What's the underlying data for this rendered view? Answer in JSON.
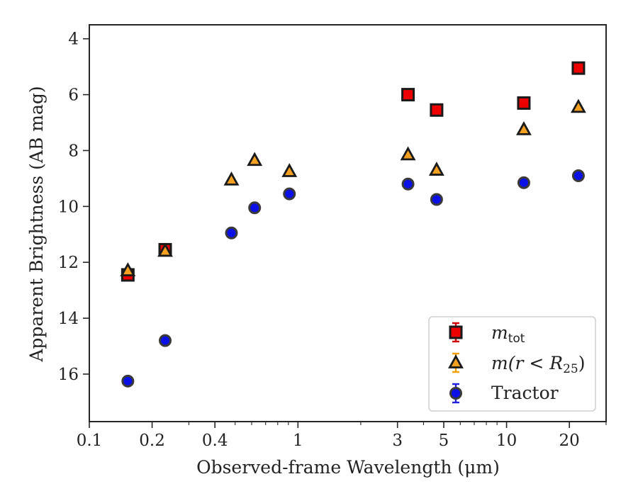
{
  "chart_data": {
    "type": "scatter",
    "xlabel": "Observed-frame Wavelength (μm)",
    "ylabel": "Apparent Brightness (AB mag)",
    "xscale": "log",
    "xlim": [
      0.1,
      30
    ],
    "ylim": [
      17.7,
      3.5
    ],
    "y_inverted": true,
    "x_ticks": [
      {
        "value": 0.1,
        "label": "0.1"
      },
      {
        "value": 0.2,
        "label": "0.2"
      },
      {
        "value": 0.4,
        "label": "0.4"
      },
      {
        "value": 1,
        "label": "1"
      },
      {
        "value": 3,
        "label": "3"
      },
      {
        "value": 5,
        "label": "5"
      },
      {
        "value": 10,
        "label": "10"
      },
      {
        "value": 20,
        "label": "20"
      }
    ],
    "y_ticks": [
      {
        "value": 4,
        "label": "4"
      },
      {
        "value": 6,
        "label": "6"
      },
      {
        "value": 8,
        "label": "8"
      },
      {
        "value": 10,
        "label": "10"
      },
      {
        "value": 12,
        "label": "12"
      },
      {
        "value": 14,
        "label": "14"
      },
      {
        "value": 16,
        "label": "16"
      }
    ],
    "grid": false,
    "legend_position": "lower-right",
    "series": [
      {
        "name": "m_tot",
        "marker": "square",
        "color": "#ee0000",
        "edge_color": "#1a1a1a",
        "error_color": "#cc0000",
        "x": [
          0.153,
          0.231,
          3.37,
          4.62,
          12.1,
          22.1
        ],
        "y": [
          12.45,
          11.55,
          6.0,
          6.55,
          6.3,
          5.05
        ]
      },
      {
        "name": "m(r<R25)",
        "marker": "triangle",
        "color": "#f5a020",
        "edge_color": "#1a1a1a",
        "error_color": "#f0a000",
        "x": [
          0.153,
          0.231,
          0.48,
          0.62,
          0.91,
          3.37,
          4.62,
          12.1,
          22.1
        ],
        "y": [
          12.3,
          11.6,
          9.05,
          8.35,
          8.75,
          8.15,
          8.7,
          7.25,
          6.45
        ]
      },
      {
        "name": "Tractor",
        "marker": "circle",
        "color": "#0a10e6",
        "edge_color": "#3a3a3a",
        "error_color": "#2222dd",
        "x": [
          0.153,
          0.231,
          0.48,
          0.62,
          0.91,
          3.37,
          4.62,
          12.1,
          22.1
        ],
        "y": [
          16.25,
          14.8,
          10.95,
          10.05,
          9.55,
          9.2,
          9.75,
          9.15,
          8.9
        ]
      }
    ]
  },
  "legend": {
    "items": [
      {
        "main": "m",
        "sub": "tot"
      },
      {
        "main": "m(r < R",
        "sub": "25",
        "tail": ")"
      },
      {
        "main": "Tractor"
      }
    ]
  }
}
